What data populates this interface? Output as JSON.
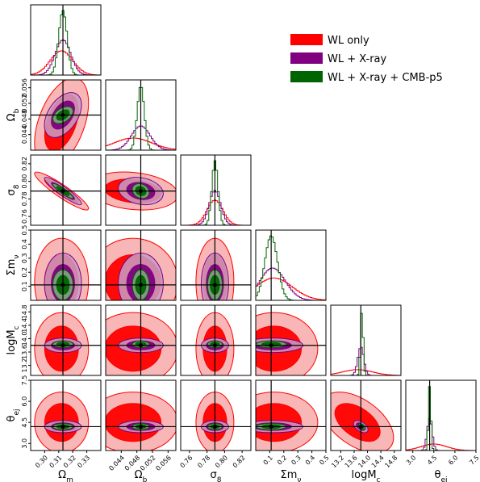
{
  "chart_data": {
    "type": "corner",
    "parameters": [
      {
        "key": "om",
        "label": "Ω",
        "sub": "m",
        "range": [
          0.29,
          0.34
        ],
        "truth": 0.313,
        "ticks": [
          "0.30",
          "0.31",
          "0.32",
          "0.33"
        ],
        "tick_values": [
          0.3,
          0.31,
          0.32,
          0.33
        ]
      },
      {
        "key": "ob",
        "label": "Ω",
        "sub": "b",
        "range": [
          0.04,
          0.058
        ],
        "truth": 0.049,
        "ticks": [
          "0.044",
          "0.048",
          "0.052",
          "0.056"
        ],
        "tick_values": [
          0.044,
          0.048,
          0.052,
          0.056
        ]
      },
      {
        "key": "s8",
        "label": "σ",
        "sub": "8",
        "range": [
          0.75,
          0.83
        ],
        "truth": 0.789,
        "ticks": [
          "0.76",
          "0.78",
          "0.80",
          "0.82"
        ],
        "tick_values": [
          0.76,
          0.78,
          0.8,
          0.82
        ]
      },
      {
        "key": "mnu",
        "label": "Σm",
        "sub": "ν",
        "range": [
          0.0,
          0.5
        ],
        "truth": 0.11,
        "ticks": [
          "0.1",
          "0.2",
          "0.3",
          "0.4",
          "0.5"
        ],
        "tick_values": [
          0.1,
          0.2,
          0.3,
          0.4,
          0.5
        ]
      },
      {
        "key": "logmc",
        "label": "logM",
        "sub": "c",
        "range": [
          12.9,
          15.0
        ],
        "truth": 13.8,
        "ticks": [
          "13.2",
          "13.6",
          "14.0",
          "14.4",
          "14.8"
        ],
        "tick_values": [
          13.2,
          13.6,
          14.0,
          14.4,
          14.8
        ]
      },
      {
        "key": "tej",
        "label": "θ",
        "sub": "ej",
        "range": [
          2.5,
          7.5
        ],
        "truth": 4.2,
        "ticks": [
          "3.0",
          "4.5",
          "6.0",
          "7.5"
        ],
        "tick_values": [
          3.0,
          4.5,
          6.0,
          7.5
        ]
      }
    ],
    "series": [
      {
        "name": "WL only",
        "color": "#ff0000",
        "color_light": "#f7a9a9",
        "centers": [
          0.312,
          0.047,
          0.789,
          0.13,
          13.7,
          4.5
        ],
        "sigmas": [
          0.008,
          0.0048,
          0.009,
          0.13,
          0.45,
          0.9
        ]
      },
      {
        "name": "WL + X-ray",
        "color": "#800080",
        "color_light": "#c79ec7",
        "centers": [
          0.313,
          0.049,
          0.789,
          0.12,
          13.8,
          4.2
        ],
        "sigmas": [
          0.0055,
          0.0024,
          0.0065,
          0.09,
          0.09,
          0.18
        ]
      },
      {
        "name": "WL + X-ray + CMB-p5",
        "color": "#006400",
        "color_light": "#7fb27f",
        "centers": [
          0.313,
          0.049,
          0.789,
          0.11,
          13.83,
          4.2
        ],
        "sigmas": [
          0.003,
          0.0009,
          0.0035,
          0.045,
          0.04,
          0.09
        ]
      }
    ],
    "legend_position": "top-right",
    "grid": false
  }
}
